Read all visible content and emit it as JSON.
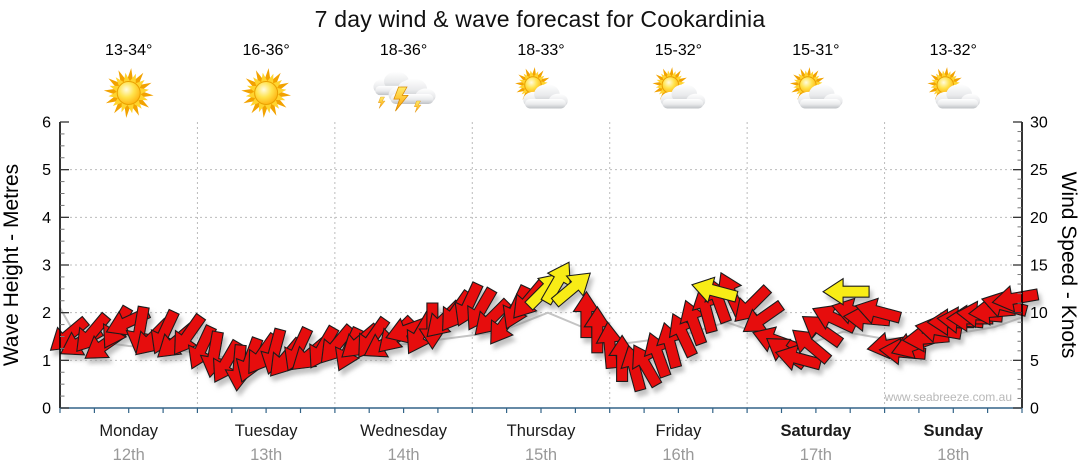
{
  "title": "7 day wind & wave forecast for Cookardinia",
  "watermark": "www.seabreeze.com.au",
  "days": [
    {
      "name": "Monday",
      "date": "12th",
      "temp": "13-34°",
      "icon": "sunny",
      "bold": false
    },
    {
      "name": "Tuesday",
      "date": "13th",
      "temp": "16-36°",
      "icon": "sunny",
      "bold": false
    },
    {
      "name": "Wednesday",
      "date": "14th",
      "temp": "18-36°",
      "icon": "storm",
      "bold": false
    },
    {
      "name": "Thursday",
      "date": "15th",
      "temp": "18-33°",
      "icon": "partly-cloudy",
      "bold": false
    },
    {
      "name": "Friday",
      "date": "16th",
      "temp": "15-32°",
      "icon": "partly-cloudy",
      "bold": false
    },
    {
      "name": "Saturday",
      "date": "17th",
      "temp": "15-31°",
      "icon": "partly-cloudy",
      "bold": true
    },
    {
      "name": "Sunday",
      "date": "18th",
      "temp": "13-32°",
      "icon": "partly-cloudy",
      "bold": true
    }
  ],
  "colors": {
    "arrow_red": "#e60e0e",
    "arrow_yellow": "#f8ec12",
    "arrow_outline": "#1a1a1a",
    "axis_bottom": "#336488",
    "axis_side": "#000000",
    "grid": "#bcbcbc",
    "day_text": "#1a1a1a",
    "date_text": "#999999",
    "watermark_text": "#b8b8b8",
    "wave_line": "#c4c4c4"
  },
  "chart_data": {
    "type": "wind-arrows",
    "title": "7 day wind & wave forecast for Cookardinia",
    "left_axis": {
      "label": "Wave Height - Metres",
      "min": 0,
      "max": 6,
      "ticks": [
        0,
        1,
        2,
        3,
        4,
        5,
        6
      ]
    },
    "right_axis": {
      "label": "Wind Speed - Knots",
      "min": 0,
      "max": 30,
      "ticks": [
        0,
        5,
        10,
        15,
        20,
        25,
        30
      ]
    },
    "x_axis_days": [
      "Monday 12th",
      "Tuesday 13th",
      "Wednesday 14th",
      "Thursday 15th",
      "Friday 16th",
      "Saturday 17th",
      "Sunday 18th"
    ],
    "grid": true,
    "angle_convention": "degrees clockwise from east; arrow points where wind blows toward",
    "arrows": [
      [
        0.06,
        7.6,
        140,
        "r"
      ],
      [
        0.15,
        6.9,
        150,
        "r"
      ],
      [
        0.23,
        7.8,
        130,
        "r"
      ],
      [
        0.32,
        6.6,
        145,
        "r"
      ],
      [
        0.41,
        8.4,
        120,
        "r"
      ],
      [
        0.49,
        9.0,
        155,
        "r"
      ],
      [
        0.58,
        8.2,
        100,
        "r"
      ],
      [
        0.67,
        7.3,
        135,
        "r"
      ],
      [
        0.76,
        7.9,
        115,
        "r"
      ],
      [
        0.84,
        6.9,
        140,
        "r"
      ],
      [
        0.93,
        7.6,
        125,
        "r"
      ],
      [
        1.03,
        6.3,
        115,
        "r"
      ],
      [
        1.12,
        5.6,
        100,
        "r"
      ],
      [
        1.21,
        4.8,
        120,
        "r"
      ],
      [
        1.3,
        4.2,
        95,
        "r"
      ],
      [
        1.38,
        5.0,
        110,
        "r"
      ],
      [
        1.47,
        5.6,
        125,
        "r"
      ],
      [
        1.56,
        5.9,
        105,
        "r"
      ],
      [
        1.64,
        5.2,
        130,
        "r"
      ],
      [
        1.73,
        6.1,
        115,
        "r"
      ],
      [
        1.82,
        5.6,
        140,
        "r"
      ],
      [
        1.91,
        6.3,
        120,
        "r"
      ],
      [
        2.01,
        6.6,
        130,
        "r"
      ],
      [
        2.1,
        6.1,
        115,
        "r"
      ],
      [
        2.18,
        6.9,
        140,
        "r"
      ],
      [
        2.27,
        7.3,
        125,
        "r"
      ],
      [
        2.36,
        6.7,
        150,
        "r"
      ],
      [
        2.44,
        7.6,
        135,
        "r"
      ],
      [
        2.53,
        8.2,
        160,
        "r"
      ],
      [
        2.62,
        7.8,
        120,
        "r"
      ],
      [
        2.71,
        8.6,
        90,
        "r"
      ],
      [
        2.79,
        9.2,
        135,
        "r"
      ],
      [
        2.88,
        10.1,
        125,
        "r"
      ],
      [
        2.97,
        10.8,
        115,
        "r"
      ],
      [
        3.06,
        10.3,
        120,
        "r"
      ],
      [
        3.14,
        9.4,
        135,
        "r"
      ],
      [
        3.23,
        8.7,
        125,
        "r"
      ],
      [
        3.32,
        10.5,
        115,
        "r"
      ],
      [
        3.41,
        11.3,
        130,
        "r"
      ],
      [
        3.53,
        12.4,
        315,
        "y"
      ],
      [
        3.62,
        13.2,
        300,
        "y"
      ],
      [
        3.73,
        12.6,
        320,
        "y"
      ],
      [
        3.83,
        9.8,
        270,
        "r"
      ],
      [
        3.91,
        8.2,
        270,
        "r"
      ],
      [
        4.0,
        6.6,
        265,
        "r"
      ],
      [
        4.09,
        5.2,
        270,
        "r"
      ],
      [
        4.18,
        4.2,
        255,
        "r"
      ],
      [
        4.26,
        4.5,
        240,
        "r"
      ],
      [
        4.35,
        5.6,
        250,
        "r"
      ],
      [
        4.44,
        6.6,
        255,
        "r"
      ],
      [
        4.53,
        7.7,
        245,
        "r"
      ],
      [
        4.61,
        9.0,
        250,
        "r"
      ],
      [
        4.7,
        10.3,
        255,
        "r"
      ],
      [
        4.79,
        11.3,
        250,
        "r"
      ],
      [
        4.88,
        12.0,
        245,
        "r"
      ],
      [
        4.76,
        12.3,
        195,
        "y"
      ],
      [
        5.03,
        10.8,
        135,
        "r"
      ],
      [
        5.11,
        9.4,
        145,
        "r"
      ],
      [
        5.2,
        7.1,
        200,
        "r"
      ],
      [
        5.28,
        5.9,
        215,
        "r"
      ],
      [
        5.37,
        5.2,
        195,
        "r"
      ],
      [
        5.46,
        6.6,
        220,
        "r"
      ],
      [
        5.54,
        8.2,
        215,
        "r"
      ],
      [
        5.63,
        9.4,
        205,
        "r"
      ],
      [
        5.72,
        12.2,
        180,
        "y"
      ],
      [
        5.78,
        10.1,
        195,
        "r"
      ],
      [
        5.87,
        9.4,
        185,
        "r"
      ],
      [
        5.95,
        10.1,
        195,
        "r"
      ],
      [
        6.04,
        6.6,
        170,
        "r"
      ],
      [
        6.13,
        5.9,
        185,
        "r"
      ],
      [
        6.21,
        6.6,
        160,
        "r"
      ],
      [
        6.3,
        7.3,
        175,
        "r"
      ],
      [
        6.39,
        8.2,
        190,
        "r"
      ],
      [
        6.48,
        9.0,
        180,
        "r"
      ],
      [
        6.55,
        9.2,
        185,
        "r"
      ],
      [
        6.62,
        9.4,
        180,
        "r"
      ],
      [
        6.69,
        9.8,
        185,
        "r"
      ],
      [
        6.78,
        10.1,
        175,
        "r"
      ],
      [
        6.87,
        10.8,
        195,
        "r"
      ],
      [
        6.95,
        11.5,
        170,
        "r"
      ]
    ],
    "wave_height_line_m": [
      [
        0,
        2.1
      ],
      [
        0.1,
        1.6
      ],
      [
        0.25,
        1.4
      ],
      [
        0.5,
        1.3
      ],
      [
        0.8,
        1.25
      ],
      [
        1.1,
        1.1
      ],
      [
        1.4,
        1.0
      ],
      [
        1.7,
        1.1
      ],
      [
        2.0,
        1.2
      ],
      [
        2.4,
        1.3
      ],
      [
        2.8,
        1.45
      ],
      [
        3.2,
        1.6
      ],
      [
        3.55,
        2.0
      ],
      [
        3.8,
        1.7
      ],
      [
        4.1,
        1.35
      ],
      [
        4.5,
        1.5
      ],
      [
        4.85,
        1.8
      ],
      [
        5.1,
        1.55
      ],
      [
        5.35,
        1.25
      ],
      [
        5.7,
        1.6
      ],
      [
        6.0,
        1.45
      ],
      [
        6.4,
        1.5
      ],
      [
        6.8,
        1.7
      ],
      [
        7.0,
        1.9
      ]
    ]
  }
}
